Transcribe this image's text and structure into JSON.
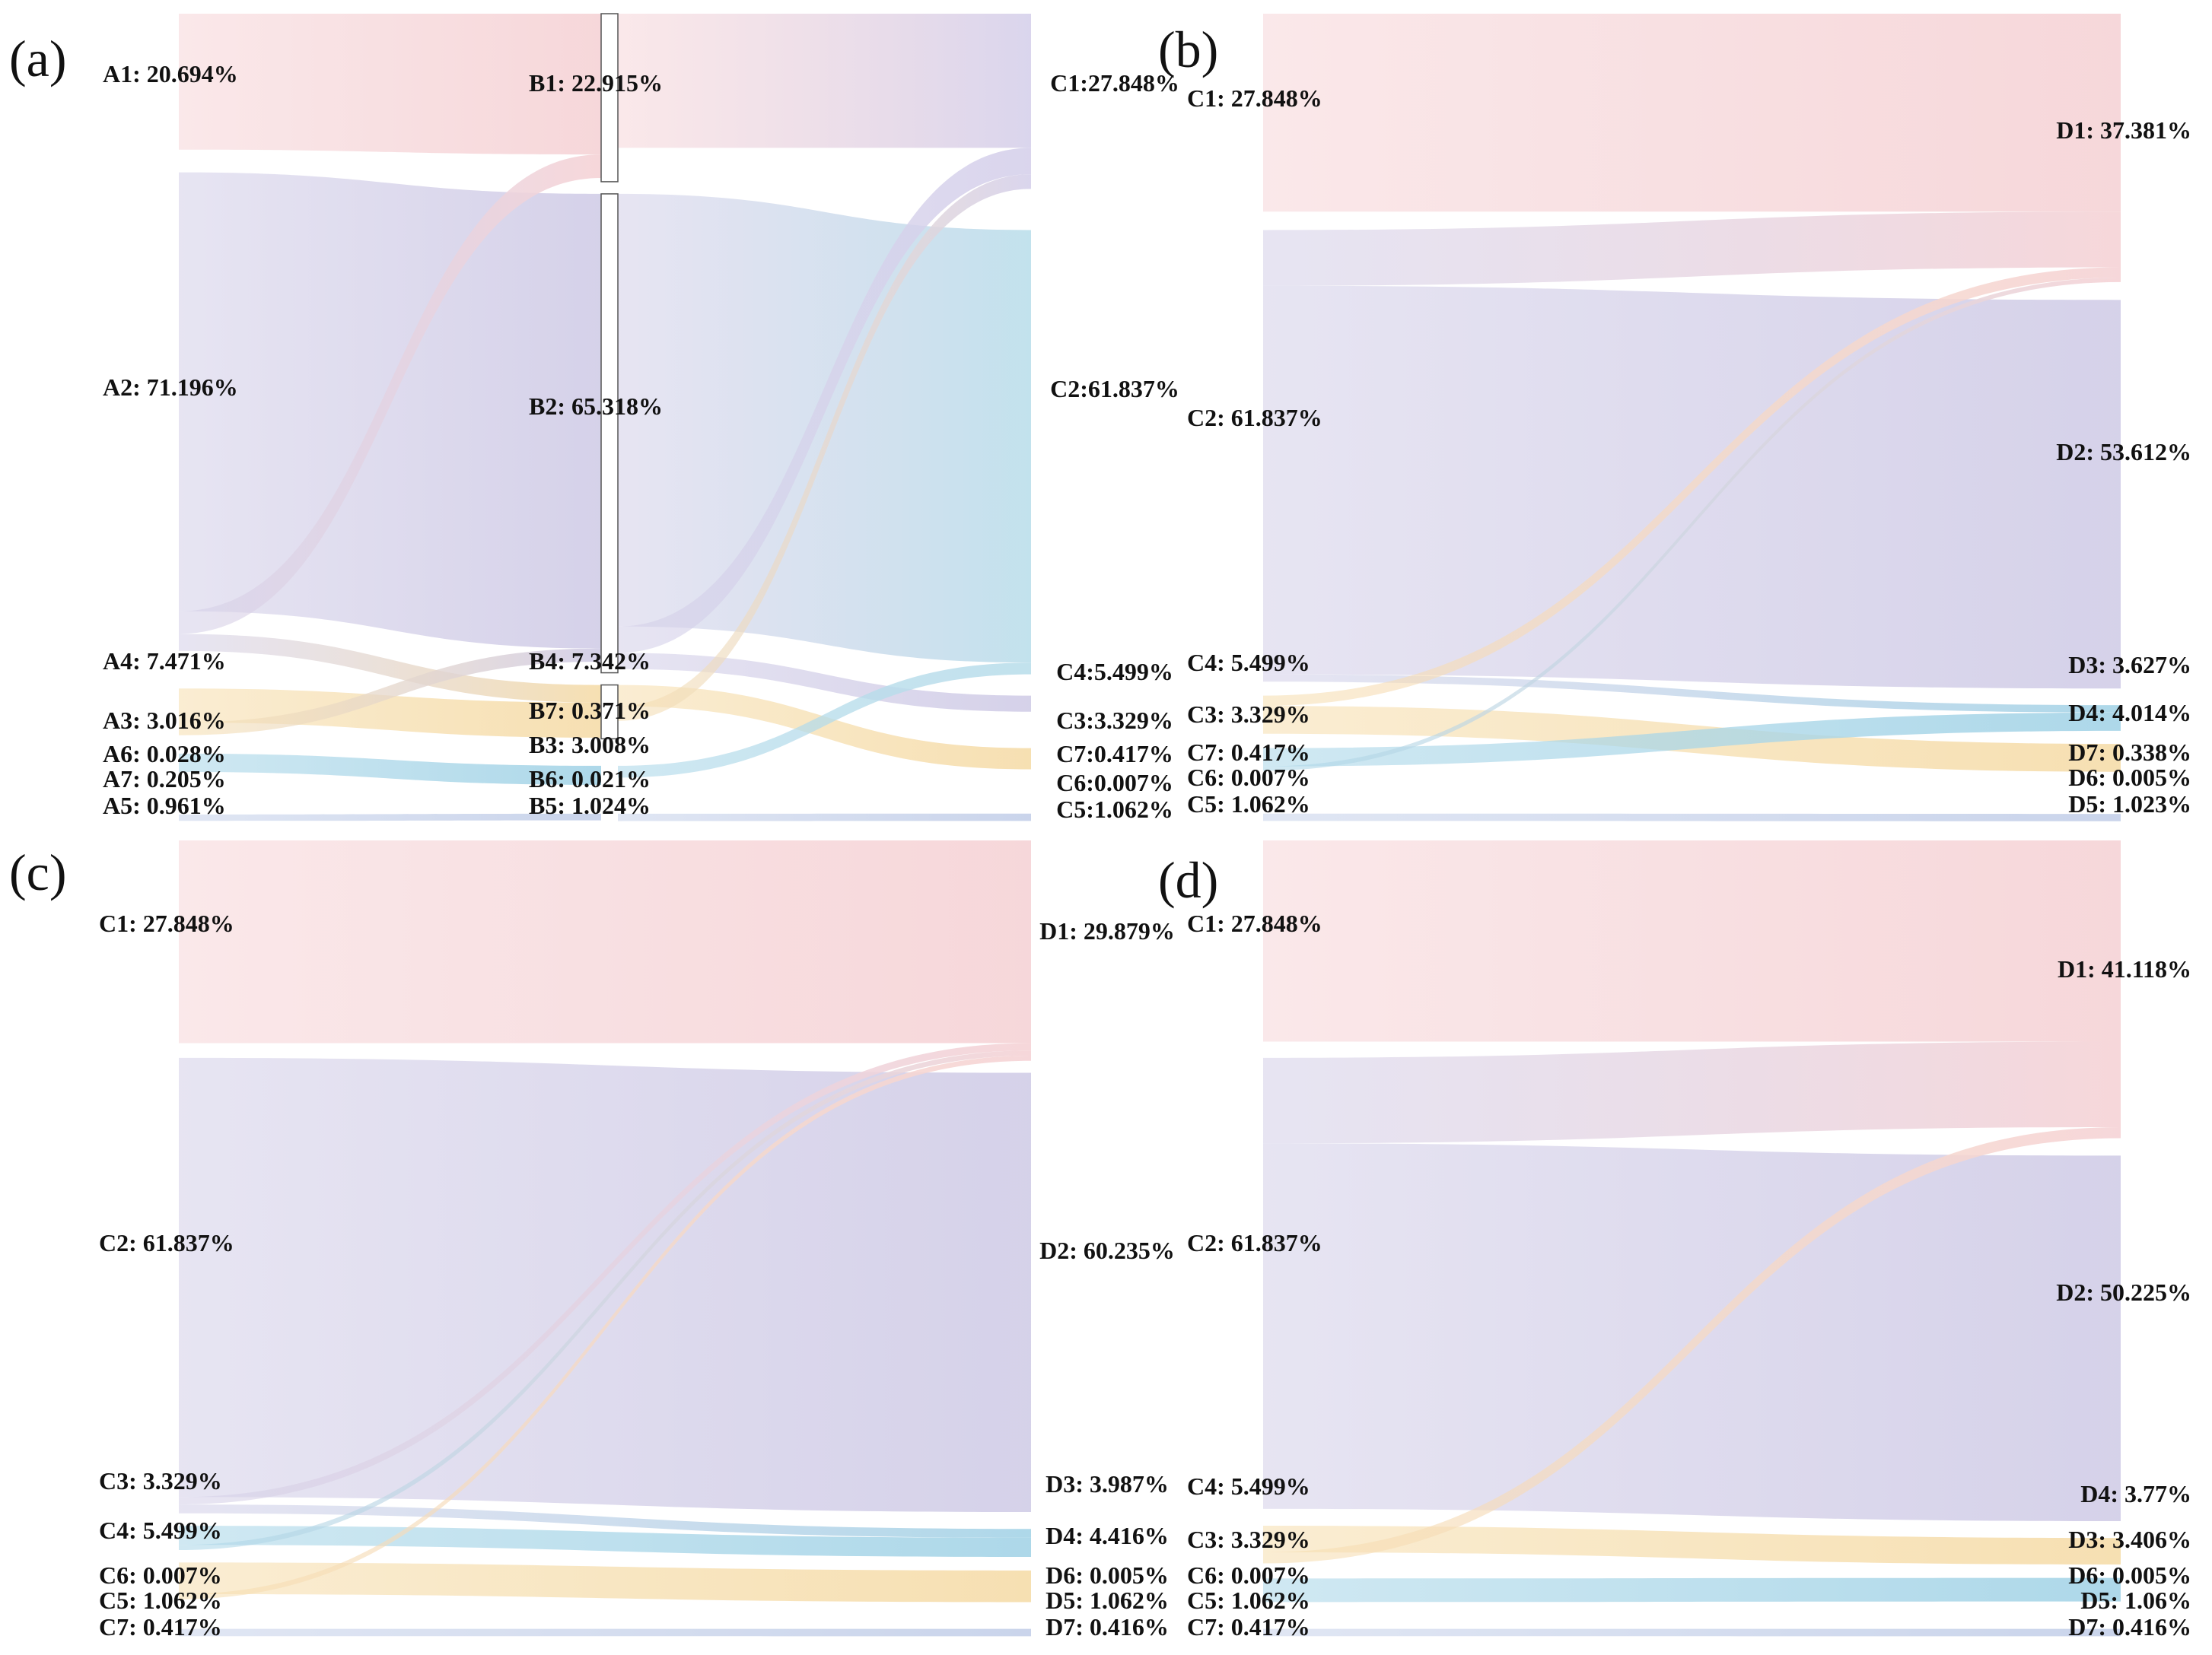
{
  "chart_data": [
    {
      "type": "sankey",
      "panel": "(a)",
      "stages": [
        {
          "name": "A",
          "nodes": [
            {
              "id": "A1",
              "label": "A1: 20.694%",
              "value": 20.694,
              "color": "#f6d5d8"
            },
            {
              "id": "A2",
              "label": "A2: 71.196%",
              "value": 71.196,
              "color": "#d3cfe8"
            },
            {
              "id": "A4",
              "label": "A4: 7.471%",
              "value": 7.471,
              "color": "#f6deae"
            },
            {
              "id": "A3",
              "label": "A3: 3.016%",
              "value": 3.016,
              "color": "#a9d6e8"
            },
            {
              "id": "A6",
              "label": "A6: 0.028%",
              "value": 0.028,
              "color": "#e6e6e6"
            },
            {
              "id": "A7",
              "label": "A7: 0.205%",
              "value": 0.205,
              "color": "#e6e6e6"
            },
            {
              "id": "A5",
              "label": "A5: 0.961%",
              "value": 0.961,
              "color": "#c7d2ea"
            }
          ]
        },
        {
          "name": "B",
          "nodes": [
            {
              "id": "B1",
              "label": "B1: 22.915%",
              "value": 22.915,
              "color": "#f6d5d8"
            },
            {
              "id": "B2",
              "label": "B2: 65.318%",
              "value": 65.318,
              "color": "#d3cfe8"
            },
            {
              "id": "B4",
              "label": "B4: 7.342%",
              "value": 7.342,
              "color": "#f6deae"
            },
            {
              "id": "B7",
              "label": "B7: 0.371%",
              "value": 0.371,
              "color": "#e6e6e6"
            },
            {
              "id": "B3",
              "label": "B3: 3.008%",
              "value": 3.008,
              "color": "#a9d6e8"
            },
            {
              "id": "B6",
              "label": "B6: 0.021%",
              "value": 0.021,
              "color": "#e6e6e6"
            },
            {
              "id": "B5",
              "label": "B5: 1.024%",
              "value": 1.024,
              "color": "#c7d2ea"
            }
          ]
        },
        {
          "name": "C",
          "nodes": [
            {
              "id": "C1",
              "label": "C1:27.848%",
              "value": 27.848,
              "color": "#d8d3ec"
            },
            {
              "id": "C2",
              "label": "C2:61.837%",
              "value": 61.837,
              "color": "#bfe0ec"
            },
            {
              "id": "C4",
              "label": "C4:5.499%",
              "value": 5.499,
              "color": "#d3cfe8"
            },
            {
              "id": "C3",
              "label": "C3:3.329%",
              "value": 3.329,
              "color": "#f6deae"
            },
            {
              "id": "C7",
              "label": "C7:0.417%",
              "value": 0.417,
              "color": "#e6e6e6"
            },
            {
              "id": "C6",
              "label": "C6:0.007%",
              "value": 0.007,
              "color": "#e6e6e6"
            },
            {
              "id": "C5",
              "label": "C5:1.062%",
              "value": 1.062,
              "color": "#c7d2ea"
            }
          ]
        }
      ],
      "links": [
        {
          "source": "A1",
          "target": "B1",
          "value": 19.2
        },
        {
          "source": "A2",
          "target": "B2",
          "value": 62.0
        },
        {
          "source": "A2",
          "target": "B1",
          "value": 3.2
        },
        {
          "source": "A2",
          "target": "B4",
          "value": 2.4
        },
        {
          "source": "A4",
          "target": "B4",
          "value": 4.8
        },
        {
          "source": "A4",
          "target": "B2",
          "value": 1.8
        },
        {
          "source": "A3",
          "target": "B3",
          "value": 2.6
        },
        {
          "source": "A5",
          "target": "B5",
          "value": 0.9
        },
        {
          "source": "B1",
          "target": "C1",
          "value": 18.3
        },
        {
          "source": "B2",
          "target": "C2",
          "value": 59.0
        },
        {
          "source": "B2",
          "target": "C1",
          "value": 3.6
        },
        {
          "source": "B2",
          "target": "C4",
          "value": 2.2
        },
        {
          "source": "B4",
          "target": "C3",
          "value": 2.9
        },
        {
          "source": "B4",
          "target": "C1",
          "value": 2.0
        },
        {
          "source": "B3",
          "target": "C2",
          "value": 1.6
        },
        {
          "source": "B5",
          "target": "C5",
          "value": 1.0
        }
      ]
    },
    {
      "type": "sankey",
      "panel": "(b)",
      "stages": [
        {
          "name": "C",
          "nodes": [
            {
              "id": "C1",
              "label": "C1: 27.848%",
              "value": 27.848,
              "color": "#f6d5d8"
            },
            {
              "id": "C2",
              "label": "C2: 61.837%",
              "value": 61.837,
              "color": "#d3cfe8"
            },
            {
              "id": "C4",
              "label": "C4: 5.499%",
              "value": 5.499,
              "color": "#f6deae"
            },
            {
              "id": "C3",
              "label": "C3: 3.329%",
              "value": 3.329,
              "color": "#a9d6e8"
            },
            {
              "id": "C7",
              "label": "C7: 0.417%",
              "value": 0.417,
              "color": "#e6e6e6"
            },
            {
              "id": "C6",
              "label": "C6: 0.007%",
              "value": 0.007,
              "color": "#e6e6e6"
            },
            {
              "id": "C5",
              "label": "C5: 1.062%",
              "value": 1.062,
              "color": "#c7d2ea"
            }
          ]
        },
        {
          "name": "D",
          "nodes": [
            {
              "id": "D1",
              "label": "D1: 37.381%",
              "value": 37.381,
              "color": "#f6d5d8"
            },
            {
              "id": "D2",
              "label": "D2: 53.612%",
              "value": 53.612,
              "color": "#d3cfe8"
            },
            {
              "id": "D3",
              "label": "D3: 3.627%",
              "value": 3.627,
              "color": "#a9d6e8"
            },
            {
              "id": "D4",
              "label": "D4: 4.014%",
              "value": 4.014,
              "color": "#f6deae"
            },
            {
              "id": "D7",
              "label": "D7: 0.338%",
              "value": 0.338,
              "color": "#e6e6e6"
            },
            {
              "id": "D6",
              "label": "D6: 0.005%",
              "value": 0.005,
              "color": "#e6e6e6"
            },
            {
              "id": "D5",
              "label": "D5: 1.023%",
              "value": 1.023,
              "color": "#c7d2ea"
            }
          ]
        }
      ],
      "links": [
        {
          "source": "C1",
          "target": "D1",
          "value": 27.0
        },
        {
          "source": "C2",
          "target": "D1",
          "value": 7.6
        },
        {
          "source": "C2",
          "target": "D2",
          "value": 53.0
        },
        {
          "source": "C2",
          "target": "D3",
          "value": 1.0
        },
        {
          "source": "C4",
          "target": "D1",
          "value": 1.4
        },
        {
          "source": "C4",
          "target": "D4",
          "value": 3.8
        },
        {
          "source": "C3",
          "target": "D3",
          "value": 2.5
        },
        {
          "source": "C3",
          "target": "D1",
          "value": 0.6
        },
        {
          "source": "C5",
          "target": "D5",
          "value": 1.0
        }
      ]
    },
    {
      "type": "sankey",
      "panel": "(c)",
      "stages": [
        {
          "name": "C",
          "nodes": [
            {
              "id": "C1",
              "label": "C1: 27.848%",
              "value": 27.848,
              "color": "#f6d5d8"
            },
            {
              "id": "C2",
              "label": "C2: 61.837%",
              "value": 61.837,
              "color": "#d3cfe8"
            },
            {
              "id": "C3",
              "label": "C3: 3.329%",
              "value": 3.329,
              "color": "#a9d6e8"
            },
            {
              "id": "C4",
              "label": "C4: 5.499%",
              "value": 5.499,
              "color": "#f6deae"
            },
            {
              "id": "C6",
              "label": "C6: 0.007%",
              "value": 0.007,
              "color": "#e6e6e6"
            },
            {
              "id": "C5",
              "label": "C5: 1.062%",
              "value": 1.062,
              "color": "#c7d2ea"
            },
            {
              "id": "C7",
              "label": "C7: 0.417%",
              "value": 0.417,
              "color": "#e6e6e6"
            }
          ]
        },
        {
          "name": "D",
          "nodes": [
            {
              "id": "D1",
              "label": "D1: 29.879%",
              "value": 29.879,
              "color": "#f6d5d8"
            },
            {
              "id": "D2",
              "label": "D2: 60.235%",
              "value": 60.235,
              "color": "#d3cfe8"
            },
            {
              "id": "D3",
              "label": "D3: 3.987%",
              "value": 3.987,
              "color": "#a9d6e8"
            },
            {
              "id": "D4",
              "label": "D4: 4.416%",
              "value": 4.416,
              "color": "#f6deae"
            },
            {
              "id": "D6",
              "label": "D6: 0.005%",
              "value": 0.005,
              "color": "#e6e6e6"
            },
            {
              "id": "D5",
              "label": "D5: 1.062%",
              "value": 1.062,
              "color": "#c7d2ea"
            },
            {
              "id": "D7",
              "label": "D7: 0.416%",
              "value": 0.416,
              "color": "#e6e6e6"
            }
          ]
        }
      ],
      "links": [
        {
          "source": "C1",
          "target": "D1",
          "value": 27.5
        },
        {
          "source": "C2",
          "target": "D2",
          "value": 59.6
        },
        {
          "source": "C2",
          "target": "D1",
          "value": 1.0
        },
        {
          "source": "C2",
          "target": "D3",
          "value": 1.2
        },
        {
          "source": "C3",
          "target": "D3",
          "value": 2.6
        },
        {
          "source": "C3",
          "target": "D1",
          "value": 0.7
        },
        {
          "source": "C4",
          "target": "D4",
          "value": 4.3
        },
        {
          "source": "C4",
          "target": "D1",
          "value": 0.7
        },
        {
          "source": "C5",
          "target": "D5",
          "value": 1.0
        }
      ]
    },
    {
      "type": "sankey",
      "panel": "(d)",
      "stages": [
        {
          "name": "C",
          "nodes": [
            {
              "id": "C1",
              "label": "C1: 27.848%",
              "value": 27.848,
              "color": "#f6d5d8"
            },
            {
              "id": "C2",
              "label": "C2: 61.837%",
              "value": 61.837,
              "color": "#d3cfe8"
            },
            {
              "id": "C4",
              "label": "C4: 5.499%",
              "value": 5.499,
              "color": "#f6deae"
            },
            {
              "id": "C3",
              "label": "C3: 3.329%",
              "value": 3.329,
              "color": "#a9d6e8"
            },
            {
              "id": "C6",
              "label": "C6: 0.007%",
              "value": 0.007,
              "color": "#e6e6e6"
            },
            {
              "id": "C5",
              "label": "C5: 1.062%",
              "value": 1.062,
              "color": "#c7d2ea"
            },
            {
              "id": "C7",
              "label": "C7: 0.417%",
              "value": 0.417,
              "color": "#e6e6e6"
            }
          ]
        },
        {
          "name": "D",
          "nodes": [
            {
              "id": "D1",
              "label": "D1: 41.118%",
              "value": 41.118,
              "color": "#f6d5d8"
            },
            {
              "id": "D2",
              "label": "D2: 50.225%",
              "value": 50.225,
              "color": "#d3cfe8"
            },
            {
              "id": "D4",
              "label": "D4: 3.77%",
              "value": 3.77,
              "color": "#f6deae"
            },
            {
              "id": "D3",
              "label": "D3: 3.406%",
              "value": 3.406,
              "color": "#a9d6e8"
            },
            {
              "id": "D6",
              "label": "D6: 0.005%",
              "value": 0.005,
              "color": "#e6e6e6"
            },
            {
              "id": "D5",
              "label": "D5: 1.06%",
              "value": 1.06,
              "color": "#c7d2ea"
            },
            {
              "id": "D7",
              "label": "D7: 0.416%",
              "value": 0.416,
              "color": "#e6e6e6"
            }
          ]
        }
      ],
      "links": [
        {
          "source": "C1",
          "target": "D1",
          "value": 27.3
        },
        {
          "source": "C2",
          "target": "D1",
          "value": 11.6
        },
        {
          "source": "C2",
          "target": "D2",
          "value": 49.6
        },
        {
          "source": "C4",
          "target": "D4",
          "value": 3.6
        },
        {
          "source": "C4",
          "target": "D1",
          "value": 1.5
        },
        {
          "source": "C3",
          "target": "D3",
          "value": 3.2
        },
        {
          "source": "C5",
          "target": "D5",
          "value": 1.0
        }
      ]
    }
  ]
}
